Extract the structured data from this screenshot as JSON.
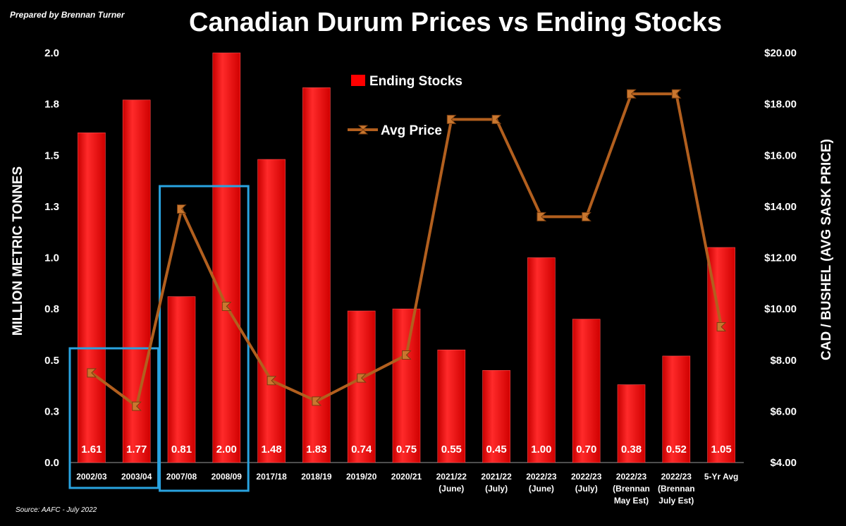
{
  "header": {
    "prepared_by": "Prepared by Brennan Turner",
    "title": "Canadian Durum Prices vs Ending Stocks",
    "source": "Source: AAFC -  July 2022"
  },
  "chart_data": {
    "type": "bar",
    "title": "Canadian Durum Prices vs Ending Stocks",
    "categories": [
      [
        "2002/03"
      ],
      [
        "2003/04"
      ],
      [
        "2007/08"
      ],
      [
        "2008/09"
      ],
      [
        "2017/18"
      ],
      [
        "2018/19"
      ],
      [
        "2019/20"
      ],
      [
        "2020/21"
      ],
      [
        "2021/22",
        "(June)"
      ],
      [
        "2021/22",
        "(July)"
      ],
      [
        "2022/23",
        "(June)"
      ],
      [
        "2022/23",
        "(July)"
      ],
      [
        "2022/23",
        "(Brennan",
        "May Est)"
      ],
      [
        "2022/23",
        "(Brennan",
        "July Est)"
      ],
      [
        "5-Yr Avg"
      ]
    ],
    "ylabel_left": "MILLION METRIC TONNES",
    "ylabel_right": "CAD / BUSHEL (AVG SASK PRICE)",
    "ylim_left": [
      0,
      2.0
    ],
    "yticks_left": [
      "0.0",
      "0.3",
      "0.5",
      "0.8",
      "1.0",
      "1.3",
      "1.5",
      "1.8",
      "2.0"
    ],
    "ylim_right": [
      4,
      20
    ],
    "yticks_right": [
      "$4.00",
      "$6.00",
      "$8.00",
      "$10.00",
      "$12.00",
      "$14.00",
      "$16.00",
      "$18.00",
      "$20.00"
    ],
    "series": [
      {
        "name": "Ending Stocks",
        "type": "bar",
        "axis": "left",
        "color": "#ff0000",
        "values": [
          1.61,
          1.77,
          0.81,
          2.0,
          1.48,
          1.83,
          0.74,
          0.75,
          0.55,
          0.45,
          1.0,
          0.7,
          0.38,
          0.52,
          1.05
        ],
        "labels": [
          "1.61",
          "1.77",
          "0.81",
          "2.00",
          "1.48",
          "1.83",
          "0.74",
          "0.75",
          "0.55",
          "0.45",
          "1.00",
          "0.70",
          "0.38",
          "0.52",
          "1.05"
        ]
      },
      {
        "name": "Avg Price",
        "type": "line",
        "axis": "right",
        "color": "#b25f1e",
        "values": [
          7.5,
          6.2,
          13.9,
          10.1,
          7.2,
          6.4,
          7.3,
          8.2,
          17.4,
          17.4,
          13.6,
          13.6,
          18.4,
          18.4,
          9.3
        ]
      }
    ],
    "legend": {
      "position": "top-center"
    },
    "highlight_boxes": [
      {
        "from_category": 0,
        "to_category": 1,
        "color": "#29a3e0"
      },
      {
        "from_category": 2,
        "to_category": 3,
        "color": "#29a3e0"
      }
    ],
    "grid": false
  }
}
